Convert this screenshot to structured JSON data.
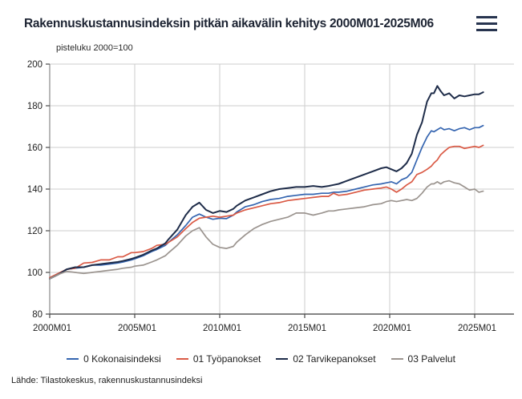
{
  "header": {
    "menu_icon": "hamburger-icon"
  },
  "footer": {
    "source": "Lähde: Tilastokeskus, rakennuskustannusindeksi"
  },
  "colors": {
    "title_text": "#1d2433",
    "menu_icon": "#27344f",
    "axis": "#4a4a4a",
    "grid": "#cdcdcd",
    "tick_label": "#1f1f1f"
  },
  "chart_data": {
    "type": "line",
    "title": "Rakennuskustannusindeksin pitkän aikavälin kehitys 2000M01-2025M06",
    "ylabel": "pisteluku 2000=100",
    "xlabel": "",
    "grid": true,
    "legend_position": "bottom",
    "ylim": [
      80,
      200
    ],
    "xlim_years": [
      2000,
      2027.3
    ],
    "yticks": [
      80,
      100,
      120,
      140,
      160,
      180,
      200
    ],
    "xticks": [
      "2000M01",
      "2005M01",
      "2010M01",
      "2015M01",
      "2020M01",
      "2025M01"
    ],
    "xtick_years": [
      2000,
      2005,
      2010,
      2015,
      2020,
      2025
    ],
    "x_years": [
      2000,
      2000.5,
      2001,
      2001.5,
      2002,
      2002.5,
      2003,
      2003.5,
      2004,
      2004.3,
      2004.8,
      2005,
      2005.5,
      2006,
      2006.3,
      2006.8,
      2007,
      2007.5,
      2008,
      2008.4,
      2008.8,
      2009.2,
      2009.6,
      2010,
      2010.4,
      2010.8,
      2011,
      2011.5,
      2012,
      2012.5,
      2013,
      2013.5,
      2014,
      2014.5,
      2015,
      2015.5,
      2016,
      2016.4,
      2016.7,
      2017,
      2017.5,
      2018,
      2018.5,
      2019,
      2019.5,
      2019.8,
      2020.1,
      2020.4,
      2020.7,
      2021,
      2021.3,
      2021.6,
      2021.9,
      2022.2,
      2022.45,
      2022.6,
      2022.8,
      2023,
      2023.2,
      2023.5,
      2023.8,
      2024.1,
      2024.4,
      2024.7,
      2025,
      2025.25,
      2025.5
    ],
    "series": [
      {
        "name": "0 Kokonaisindeksi",
        "color": "#3565b0",
        "values": [
          97,
          99,
          101.5,
          102,
          102.5,
          103.5,
          103.5,
          104,
          104.5,
          105,
          106,
          106.5,
          108,
          110,
          111,
          113,
          114.5,
          118,
          122.5,
          126.5,
          128,
          126.5,
          125.5,
          126,
          125.8,
          127.5,
          129,
          131.5,
          132.5,
          134,
          135,
          135.5,
          136.5,
          137,
          137.5,
          137.5,
          138,
          138,
          138.5,
          138.5,
          139,
          140,
          141,
          142,
          142.5,
          143,
          143.5,
          142.5,
          144.5,
          145.5,
          148,
          154,
          160,
          165,
          168,
          167.5,
          168.5,
          169.5,
          168.5,
          169,
          168,
          169,
          169.5,
          168.5,
          169.5,
          169.5,
          170.5
        ]
      },
      {
        "name": "01 Työpanokset",
        "color": "#da5a45",
        "values": [
          97.5,
          99.5,
          101.5,
          102,
          104.5,
          104.8,
          106,
          106,
          107.5,
          107.5,
          109.5,
          109.5,
          110,
          111.5,
          113,
          113.5,
          114.5,
          117,
          121,
          124,
          126,
          126.5,
          127,
          126.5,
          127,
          127.5,
          128.5,
          130,
          131,
          132,
          133,
          133.5,
          134.5,
          135,
          135.5,
          136,
          136.5,
          136.5,
          138,
          137,
          137.5,
          138.5,
          139.5,
          140,
          140.5,
          141,
          140,
          138.5,
          140,
          142,
          143.5,
          147,
          148,
          149.5,
          151,
          152.5,
          154,
          156.5,
          158,
          160,
          160.5,
          160.5,
          159.5,
          160,
          160.5,
          160,
          161
        ]
      },
      {
        "name": "02 Tarvikepanokset",
        "color": "#1e2c49",
        "values": [
          97,
          99,
          101.5,
          102.5,
          102.5,
          103.5,
          104,
          104.5,
          105,
          105.5,
          106.5,
          107,
          108.5,
          110.5,
          111.5,
          114,
          116,
          120.5,
          127.5,
          131.5,
          133.5,
          130,
          128.5,
          129.5,
          129,
          130.5,
          132,
          134.5,
          136,
          137.5,
          139,
          140,
          140.5,
          141,
          141,
          141.5,
          141,
          141.5,
          142,
          142.5,
          144,
          145.5,
          147,
          148.5,
          150,
          150.5,
          149.5,
          148.5,
          150,
          152.5,
          157,
          166,
          172,
          182,
          186,
          186,
          189.5,
          187,
          185,
          186,
          183.5,
          185,
          184.5,
          185,
          185.5,
          185.5,
          186.5
        ]
      },
      {
        "name": "03 Palvelut",
        "color": "#9b948f",
        "values": [
          97,
          99,
          100.5,
          100,
          99.5,
          100,
          100.5,
          101,
          101.5,
          102,
          102.5,
          103,
          103.5,
          105,
          106,
          108,
          109.5,
          113,
          117.5,
          120,
          121.5,
          117,
          113.5,
          112,
          111.5,
          112.5,
          114.5,
          118,
          121,
          123,
          124.5,
          125.5,
          126.5,
          128.5,
          128.5,
          127.5,
          128.5,
          129.5,
          129.5,
          130,
          130.5,
          131,
          131.5,
          132.5,
          133,
          134,
          134.5,
          134,
          134.5,
          135,
          134.5,
          135.5,
          138,
          141,
          142.5,
          142.5,
          143.5,
          142.5,
          143.5,
          144,
          143,
          142.5,
          141,
          139.5,
          140,
          138.5,
          139
        ]
      }
    ]
  }
}
